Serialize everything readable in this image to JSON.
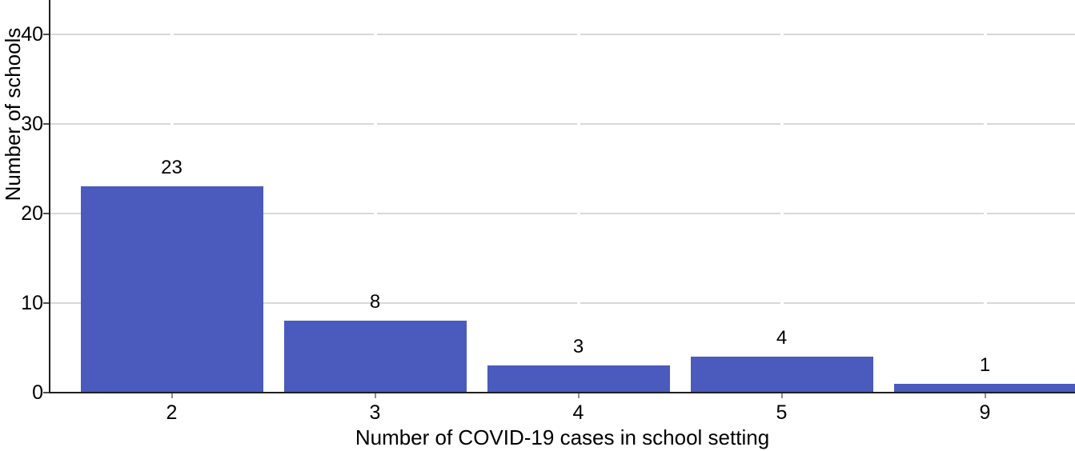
{
  "chart_data": {
    "type": "bar",
    "categories": [
      "2",
      "3",
      "4",
      "5",
      "9"
    ],
    "values": [
      23,
      8,
      3,
      4,
      1
    ],
    "title": "",
    "xlabel": "Number of COVID-19 cases in school setting",
    "ylabel": "Number of schools",
    "yticks": [
      0,
      10,
      20,
      30,
      40
    ],
    "ylim": [
      0,
      43
    ],
    "grid": "horizontal-major-only",
    "legend": "none",
    "bar_labels_shown": true
  },
  "colors": {
    "bar": "#4a5bbd",
    "grid": "#d8d8d8",
    "axis": "#1f1f1f",
    "x_tick": "#8f8f8f",
    "y_tick": "#4d4d4d",
    "text": "#000000",
    "background": "#ffffff"
  }
}
